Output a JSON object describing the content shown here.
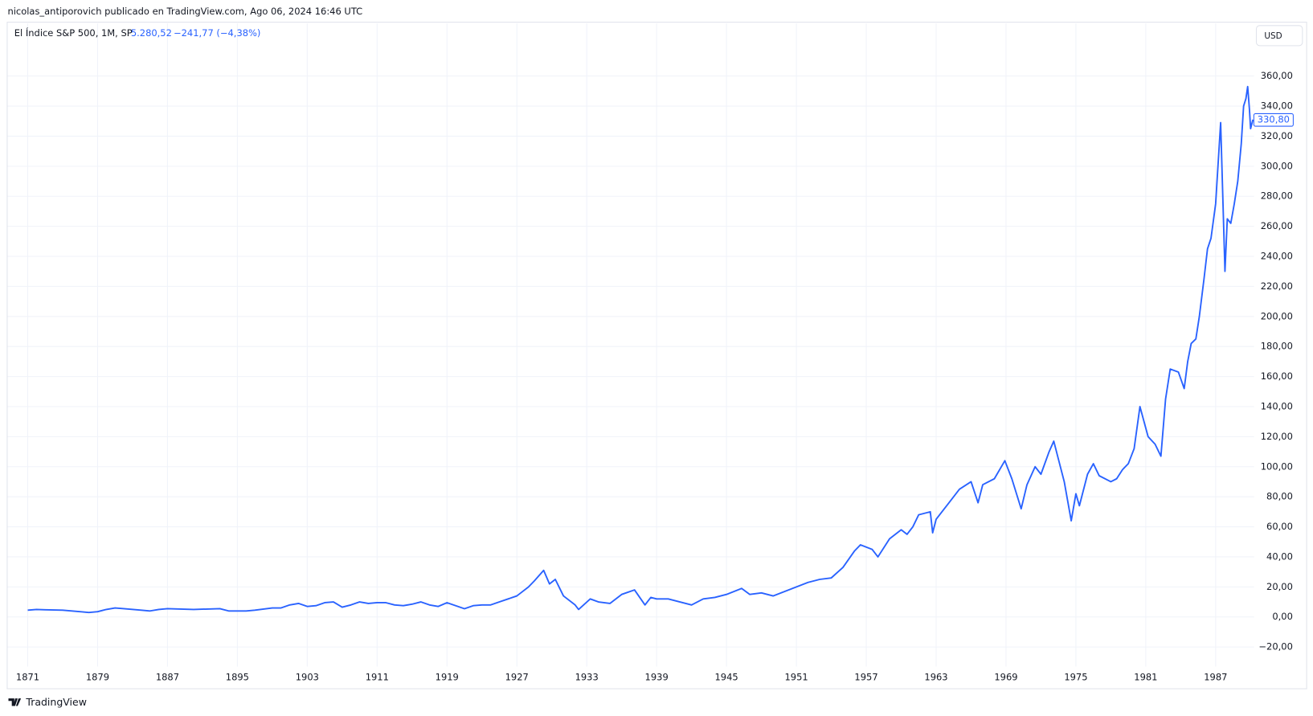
{
  "header": {
    "attribution": "nicolas_antiporovich publicado en TradingView.com, Ago 06, 2024 16:46 UTC"
  },
  "chart_data": {
    "type": "line",
    "title": "El Índice S&P 500, 1M, SP",
    "legend_price": "5.280,52",
    "legend_change": "−241,77 (−4,38%)",
    "currency": "USD",
    "x": [
      1871,
      1872,
      1873,
      1875,
      1877,
      1878,
      1879,
      1880,
      1881,
      1882,
      1884,
      1885,
      1886,
      1887,
      1890,
      1893,
      1894,
      1896,
      1897,
      1899,
      1900,
      1901,
      1902,
      1903,
      1904,
      1905,
      1906,
      1907,
      1908,
      1909,
      1910,
      1911,
      1912,
      1913,
      1914,
      1915,
      1916,
      1917,
      1918,
      1919,
      1920,
      1921,
      1922,
      1923,
      1924,
      1925,
      1926,
      1927,
      1928,
      1928.5,
      1929.3,
      1929.8,
      1930.3,
      1931,
      1932,
      1932.3,
      1933.3,
      1934,
      1935,
      1936,
      1937.1,
      1938,
      1938.5,
      1939,
      1940,
      1941,
      1942,
      1943,
      1944,
      1945,
      1946.3,
      1947,
      1948,
      1949,
      1950,
      1951,
      1952,
      1953,
      1954,
      1955,
      1956,
      1956.5,
      1957.5,
      1958,
      1959,
      1960,
      1960.5,
      1961,
      1961.5,
      1962.5,
      1962.7,
      1963,
      1964,
      1965,
      1966,
      1966.6,
      1967,
      1968,
      1968.9,
      1969.5,
      1970.3,
      1970.8,
      1971.5,
      1972,
      1972.7,
      1973.1,
      1973.5,
      1974,
      1974.6,
      1975,
      1975.3,
      1976,
      1976.5,
      1977,
      1978,
      1978.5,
      1979,
      1979.5,
      1980,
      1980.5,
      1981.2,
      1981.8,
      1982.3,
      1982.7,
      1983.1,
      1983.8,
      1984.3,
      1984.6,
      1984.9,
      1985.3,
      1985.6,
      1986,
      1986.3,
      1986.6,
      1987,
      1987.43,
      1987.8,
      1988,
      1988.3,
      1988.6,
      1988.9,
      1989.2,
      1989.4,
      1989.6,
      1989.75,
      1989.9,
      1990,
      1990.2
    ],
    "series": [
      {
        "name": "S&P 500",
        "color": "#2962ff",
        "values": [
          4.5,
          5,
          4.8,
          4.5,
          3.5,
          3,
          3.5,
          5,
          6,
          5.5,
          4.5,
          4,
          5,
          5.5,
          5,
          5.5,
          4,
          4,
          4.5,
          6,
          6,
          8,
          9,
          7,
          7.5,
          9.5,
          10,
          6.5,
          8,
          10,
          9,
          9.5,
          9.5,
          8,
          7.5,
          8.5,
          10,
          8,
          7,
          9.5,
          7.5,
          5.5,
          7.5,
          8,
          8,
          10,
          12,
          14,
          20,
          24,
          31,
          22,
          25,
          14,
          8,
          5,
          12,
          10,
          9,
          15,
          18,
          8,
          13,
          12,
          12,
          10,
          8,
          12,
          13,
          15,
          19,
          15,
          16,
          14,
          17,
          20,
          23,
          25,
          26,
          33,
          44,
          48,
          45,
          40,
          52,
          58,
          55,
          60,
          68,
          70,
          56,
          65,
          75,
          85,
          90,
          76,
          88,
          92,
          104,
          92,
          72,
          88,
          100,
          95,
          110,
          117,
          105,
          90,
          64,
          82,
          74,
          95,
          102,
          94,
          90,
          92,
          98,
          102,
          112,
          140,
          120,
          115,
          107,
          145,
          165,
          163,
          152,
          170,
          182,
          185,
          200,
          225,
          245,
          252,
          275,
          329,
          230,
          265,
          262,
          275,
          290,
          315,
          340,
          345,
          353,
          338,
          325,
          331
        ]
      }
    ],
    "last_price": {
      "value": 330.8,
      "label": "330,80"
    },
    "xlim": [
      1868.7,
      1990.3
    ],
    "xticks": [
      1871,
      1879,
      1887,
      1895,
      1903,
      1911,
      1919,
      1927,
      1933,
      1939,
      1945,
      1951,
      1957,
      1963,
      1969,
      1975,
      1981,
      1987
    ],
    "ylim": [
      -33,
      395
    ],
    "yticks": [
      {
        "value": -20,
        "label": "−20,00"
      },
      {
        "value": 0,
        "label": "0,00"
      },
      {
        "value": 20,
        "label": "20,00"
      },
      {
        "value": 40,
        "label": "40,00"
      },
      {
        "value": 60,
        "label": "60,00"
      },
      {
        "value": 80,
        "label": "80,00"
      },
      {
        "value": 100,
        "label": "100,00"
      },
      {
        "value": 120,
        "label": "120,00"
      },
      {
        "value": 140,
        "label": "140,00"
      },
      {
        "value": 160,
        "label": "160,00"
      },
      {
        "value": 180,
        "label": "180,00"
      },
      {
        "value": 200,
        "label": "200,00"
      },
      {
        "value": 220,
        "label": "220,00"
      },
      {
        "value": 240,
        "label": "240,00"
      },
      {
        "value": 260,
        "label": "260,00"
      },
      {
        "value": 280,
        "label": "280,00"
      },
      {
        "value": 300,
        "label": "300,00"
      },
      {
        "value": 320,
        "label": "320,00"
      },
      {
        "value": 340,
        "label": "340,00"
      },
      {
        "value": 360,
        "label": "360,00"
      }
    ],
    "grid": true
  },
  "footer": {
    "logo": "TradingView"
  }
}
